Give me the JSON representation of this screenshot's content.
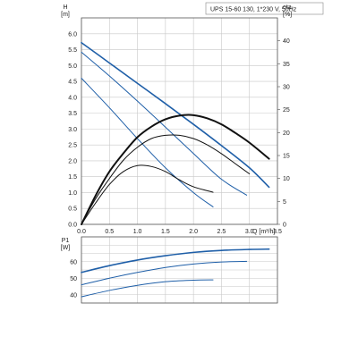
{
  "chart_data": [
    {
      "type": "line",
      "title": "UPS 15-60 130, 1*230 V, 50Hz",
      "xlabel": "Q [m³/h]",
      "ylabel_left": "H [m]",
      "ylabel_right": "eta [%]",
      "x_unit_label": "Q [m³/h]",
      "y_left_name": "H",
      "y_left_unit": "[m]",
      "y_right_name": "eta",
      "y_right_unit": "[%]",
      "xlim": [
        0,
        3.5
      ],
      "ylim_left": [
        0,
        6.5
      ],
      "ylim_right": [
        0,
        45
      ],
      "x_ticks": [
        "0.0",
        "0.5",
        "1.0",
        "1.5",
        "2.0",
        "2.5",
        "3.0",
        "3.5"
      ],
      "y_left_ticks": [
        "0.0",
        "0.5",
        "1.0",
        "1.5",
        "2.0",
        "2.5",
        "3.0",
        "3.5",
        "4.0",
        "4.5",
        "5.0",
        "5.5",
        "6.0"
      ],
      "y_right_ticks": [
        "0",
        "5",
        "10",
        "15",
        "20",
        "25",
        "30",
        "35",
        "40"
      ],
      "grid": true,
      "series": [
        {
          "axis": "left",
          "color": "#1f5fa8",
          "width": 1.6,
          "x": [
            0,
            0.5,
            1.0,
            1.5,
            2.0,
            2.5,
            3.0,
            3.35
          ],
          "values": [
            5.72,
            5.08,
            4.44,
            3.8,
            3.15,
            2.48,
            1.78,
            1.17
          ]
        },
        {
          "axis": "left",
          "color": "#1f5fa8",
          "width": 1.0,
          "x": [
            0,
            0.5,
            1.0,
            1.5,
            2.0,
            2.5,
            2.95
          ],
          "values": [
            5.42,
            4.67,
            3.88,
            3.06,
            2.23,
            1.42,
            0.92
          ]
        },
        {
          "axis": "left",
          "color": "#1f5fa8",
          "width": 1.0,
          "x": [
            0,
            0.5,
            1.0,
            1.5,
            2.0,
            2.35
          ],
          "values": [
            4.6,
            3.67,
            2.7,
            1.78,
            1.0,
            0.55
          ]
        },
        {
          "axis": "right",
          "color": "#111111",
          "width": 2.0,
          "x": [
            0,
            0.25,
            0.5,
            0.75,
            1.0,
            1.25,
            1.5,
            1.75,
            2.0,
            2.25,
            2.5,
            2.75,
            3.0,
            3.35
          ],
          "values": [
            0,
            6.2,
            11.5,
            15.5,
            19.0,
            21.3,
            22.9,
            23.7,
            23.8,
            23.1,
            21.8,
            19.9,
            17.8,
            14.3
          ]
        },
        {
          "axis": "right",
          "color": "#111111",
          "width": 1.0,
          "x": [
            0,
            0.25,
            0.5,
            0.75,
            1.0,
            1.25,
            1.5,
            1.75,
            2.0,
            2.25,
            2.5,
            2.75,
            3.0
          ],
          "values": [
            0,
            5.5,
            10.0,
            14.0,
            16.8,
            18.7,
            19.4,
            19.4,
            18.7,
            17.3,
            15.4,
            13.2,
            11.0
          ]
        },
        {
          "axis": "right",
          "color": "#111111",
          "width": 1.0,
          "x": [
            0,
            0.25,
            0.5,
            0.75,
            1.0,
            1.25,
            1.5,
            1.75,
            2.0,
            2.35
          ],
          "values": [
            0,
            4.6,
            8.7,
            11.5,
            12.8,
            12.6,
            11.5,
            9.7,
            8.2,
            7.0
          ]
        }
      ]
    },
    {
      "type": "line",
      "ylabel": "P1 [W]",
      "y_name": "P1",
      "y_unit": "[W]",
      "xlim": [
        0,
        3.5
      ],
      "ylim": [
        35,
        75
      ],
      "y_ticks": [
        "40",
        "50",
        "60"
      ],
      "grid": true,
      "series": [
        {
          "color": "#1f5fa8",
          "width": 1.6,
          "x": [
            0,
            0.5,
            1.0,
            1.5,
            2.0,
            2.5,
            3.0,
            3.35
          ],
          "values": [
            53.5,
            57.6,
            61.0,
            63.6,
            65.6,
            66.8,
            67.4,
            67.6
          ]
        },
        {
          "color": "#1f5fa8",
          "width": 1.0,
          "x": [
            0,
            0.5,
            1.0,
            1.5,
            2.0,
            2.5,
            2.95
          ],
          "values": [
            46.0,
            50.0,
            53.5,
            56.5,
            58.6,
            59.8,
            60.2
          ]
        },
        {
          "color": "#1f5fa8",
          "width": 1.0,
          "x": [
            0,
            0.5,
            1.0,
            1.5,
            2.0,
            2.35
          ],
          "values": [
            38.8,
            42.6,
            45.7,
            47.9,
            48.8,
            49.0
          ]
        }
      ]
    }
  ]
}
